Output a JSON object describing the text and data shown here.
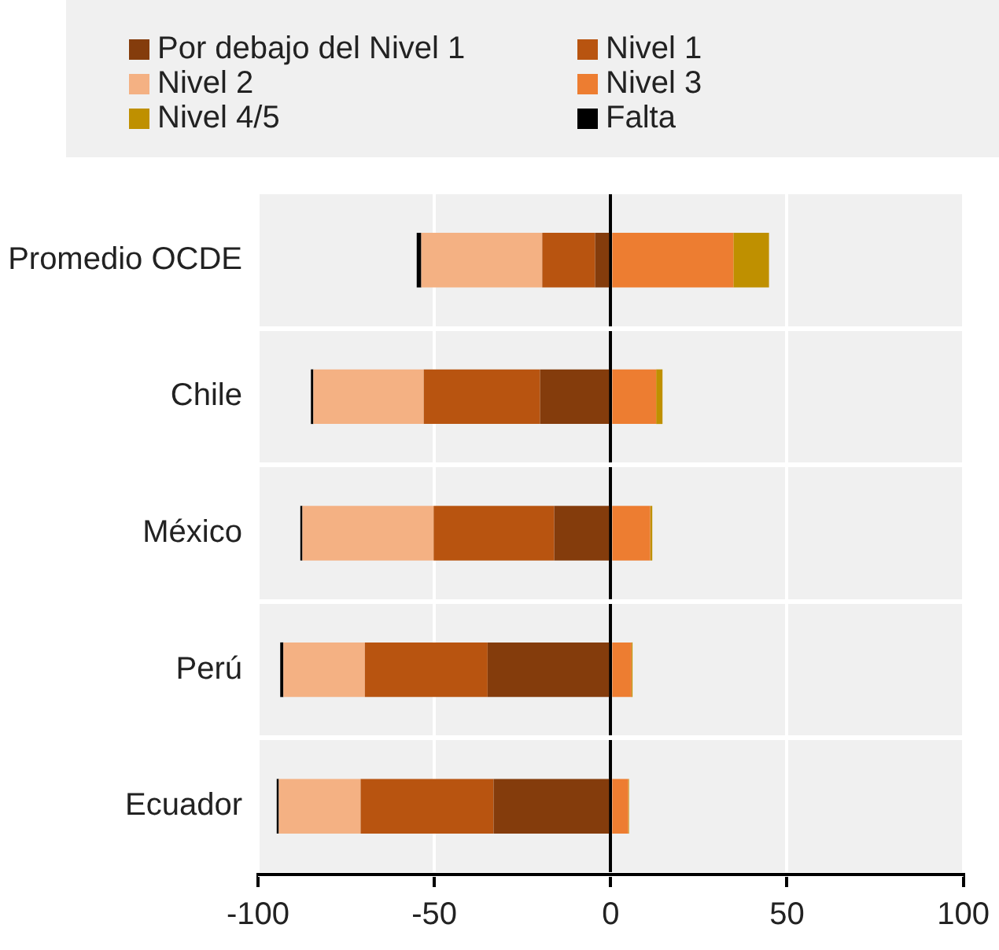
{
  "chart_data": {
    "type": "bar",
    "orientation": "horizontal",
    "stacked": true,
    "categories": [
      "Promedio OCDE",
      "Chile",
      "México",
      "Perú",
      "Ecuador"
    ],
    "series": [
      {
        "name": "Por debajo del Nivel 1",
        "color": "#843c0c",
        "values": [
          -4.4,
          -20,
          -16,
          -34.9,
          -33.2
        ]
      },
      {
        "name": "Nivel 1",
        "color": "#b85410",
        "values": [
          -15,
          -33,
          -34.2,
          -34.8,
          -37.7
        ]
      },
      {
        "name": "Nivel 2",
        "color": "#f4b183",
        "values": [
          -34.3,
          -31.3,
          -37.2,
          -23.1,
          -23.2
        ]
      },
      {
        "name": "Nivel 3",
        "color": "#ed7d31",
        "values": [
          34.8,
          12.9,
          11.2,
          5.9,
          5
        ]
      },
      {
        "name": "Nivel 4/5",
        "color": "#bf9000",
        "values": [
          10.1,
          1.8,
          0.6,
          0.3,
          0.2
        ]
      },
      {
        "name": "Falta",
        "color": "#000000",
        "values": [
          -1.3,
          -0.7,
          -0.6,
          -0.9,
          -0.6
        ]
      }
    ],
    "xlim": [
      -100,
      100
    ],
    "xticks": [
      -100,
      -50,
      0,
      50,
      100
    ],
    "grid": true,
    "legend": "top"
  }
}
